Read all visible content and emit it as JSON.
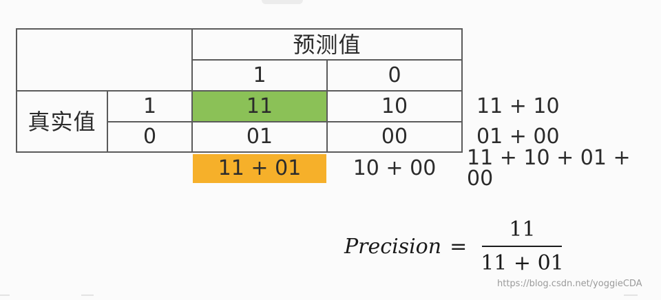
{
  "title": "预测值",
  "row_header": "真实值",
  "pred_labels": [
    "1",
    "0"
  ],
  "actual_labels": [
    "1",
    "0"
  ],
  "cells": {
    "tp": "11",
    "fn": "10",
    "fp": "01",
    "tn": "00"
  },
  "row_sums": [
    "11 + 10",
    "01 + 00"
  ],
  "col_sums": [
    "11 + 01",
    "10 + 00"
  ],
  "total": "11 + 10 + 01 + 00",
  "formula": {
    "lhs": "Precision",
    "eq": "=",
    "numerator": "11",
    "denominator": "11 + 01"
  },
  "watermark": "https://blog.csdn.net/yoggieCDA",
  "colors": {
    "tp_fill": "#8bc157",
    "precision_sum_fill": "#f6b02a"
  }
}
